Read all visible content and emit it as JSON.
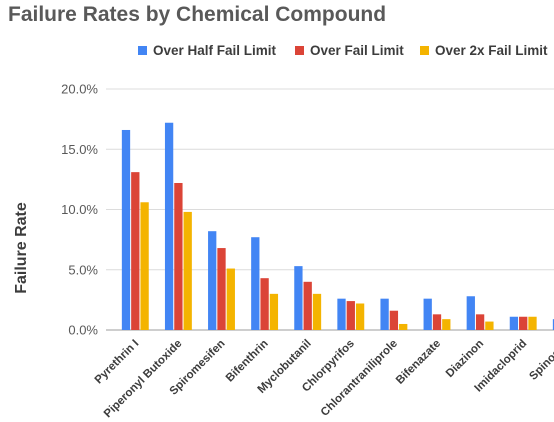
{
  "chart_data": {
    "type": "bar",
    "title": "Failure Rates by Chemical Compound",
    "xlabel": "",
    "ylabel": "Failure Rate",
    "ylim": [
      0,
      20
    ],
    "yticks": [
      "0.0%",
      "5.0%",
      "10.0%",
      "15.0%",
      "20.0%"
    ],
    "grid": true,
    "legend_position": "top",
    "categories": [
      "Pyrethrin I",
      "Piperonyl Butoxide",
      "Spiromesifen",
      "Bifenthrin",
      "Myclobutanil",
      "Chlorpyrifos",
      "Chlorantraniliprole",
      "Bifenazate",
      "Diazinon",
      "Imidacloprid",
      "Spinosad"
    ],
    "series": [
      {
        "name": "Over Half Fail Limit",
        "color": "#4285f4",
        "values": [
          16.6,
          17.2,
          8.2,
          7.7,
          5.3,
          2.6,
          2.6,
          2.6,
          2.8,
          1.1,
          0.9
        ]
      },
      {
        "name": "Over Fail Limit",
        "color": "#db4437",
        "values": [
          13.1,
          12.2,
          6.8,
          4.3,
          4.0,
          2.4,
          1.6,
          1.3,
          1.3,
          1.1,
          0.0
        ]
      },
      {
        "name": "Over 2x Fail Limit",
        "color": "#f4b400",
        "values": [
          10.6,
          9.8,
          5.1,
          3.0,
          3.0,
          2.2,
          0.5,
          0.9,
          0.7,
          1.1,
          0.0
        ]
      }
    ]
  }
}
